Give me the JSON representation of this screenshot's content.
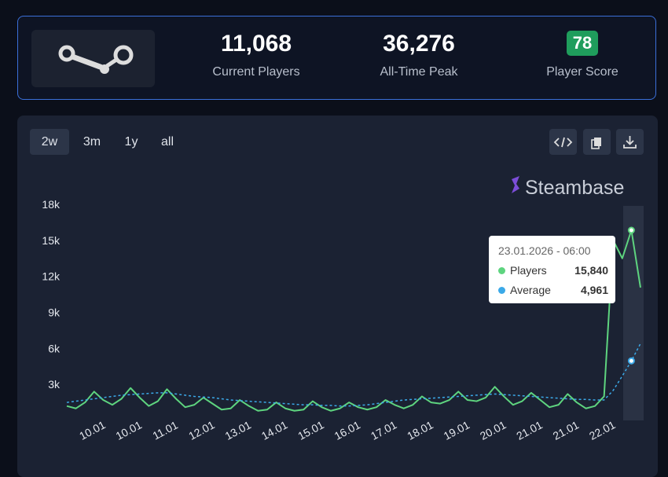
{
  "stats": [
    {
      "value": "11,068",
      "label": "Current Players"
    },
    {
      "value": "36,276",
      "label": "All-Time Peak"
    },
    {
      "value": "78",
      "label": "Player Score"
    }
  ],
  "tabs": [
    "2w",
    "3m",
    "1y",
    "all"
  ],
  "brand": "Steambase",
  "tooltip": {
    "date": "23.01.2026 - 06:00",
    "rows": [
      {
        "name": "Players",
        "value": "15,840"
      },
      {
        "name": "Average",
        "value": "4,961"
      }
    ]
  },
  "chart_data": {
    "type": "line",
    "categories": [
      null,
      null,
      null,
      "10.01",
      null,
      null,
      null,
      "10.01",
      null,
      null,
      null,
      "11.01",
      null,
      null,
      null,
      "12.01",
      null,
      null,
      null,
      "13.01",
      null,
      null,
      null,
      "14.01",
      null,
      null,
      null,
      "15.01",
      null,
      null,
      null,
      "16.01",
      null,
      null,
      null,
      "17.01",
      null,
      null,
      null,
      "18.01",
      null,
      null,
      null,
      "19.01",
      null,
      null,
      null,
      "20.01",
      null,
      null,
      null,
      "21.01",
      null,
      null,
      null,
      "21.01",
      null,
      null,
      null,
      "22.01",
      null,
      null,
      null,
      null
    ],
    "series": [
      {
        "name": "Players",
        "color": "#5ed47f",
        "values": [
          1200,
          1000,
          1500,
          2400,
          1700,
          1300,
          1800,
          2700,
          1900,
          1200,
          1600,
          2600,
          1800,
          1100,
          1300,
          1900,
          1400,
          900,
          1000,
          1700,
          1200,
          800,
          900,
          1500,
          1000,
          800,
          900,
          1600,
          1100,
          800,
          1000,
          1500,
          1100,
          900,
          1100,
          1700,
          1300,
          1000,
          1300,
          2000,
          1500,
          1400,
          1700,
          2400,
          1700,
          1600,
          1900,
          2800,
          2000,
          1300,
          1600,
          2300,
          1700,
          1100,
          1300,
          2200,
          1500,
          1000,
          1200,
          2000,
          15000,
          13500,
          15840,
          11068
        ]
      },
      {
        "name": "Average",
        "color": "#3ba9e8",
        "values": [
          1500,
          1600,
          1700,
          1800,
          1900,
          2000,
          2100,
          2150,
          2200,
          2250,
          2300,
          2300,
          2200,
          2100,
          2000,
          1950,
          1900,
          1800,
          1700,
          1650,
          1600,
          1550,
          1500,
          1450,
          1400,
          1350,
          1300,
          1300,
          1250,
          1250,
          1200,
          1200,
          1250,
          1300,
          1400,
          1500,
          1600,
          1700,
          1750,
          1800,
          1850,
          1900,
          1950,
          2000,
          2050,
          2100,
          2150,
          2200,
          2150,
          2100,
          2050,
          2000,
          1950,
          1900,
          1850,
          1800,
          1750,
          1750,
          1700,
          1700,
          2500,
          3700,
          4961,
          6400
        ]
      }
    ],
    "ylim": [
      0,
      18000
    ],
    "yticks": [
      {
        "value": 3000,
        "label": "3k"
      },
      {
        "value": 6000,
        "label": "6k"
      },
      {
        "value": 9000,
        "label": "9k"
      },
      {
        "value": 12000,
        "label": "12k"
      },
      {
        "value": 15000,
        "label": "15k"
      },
      {
        "value": 18000,
        "label": "18k"
      }
    ]
  }
}
